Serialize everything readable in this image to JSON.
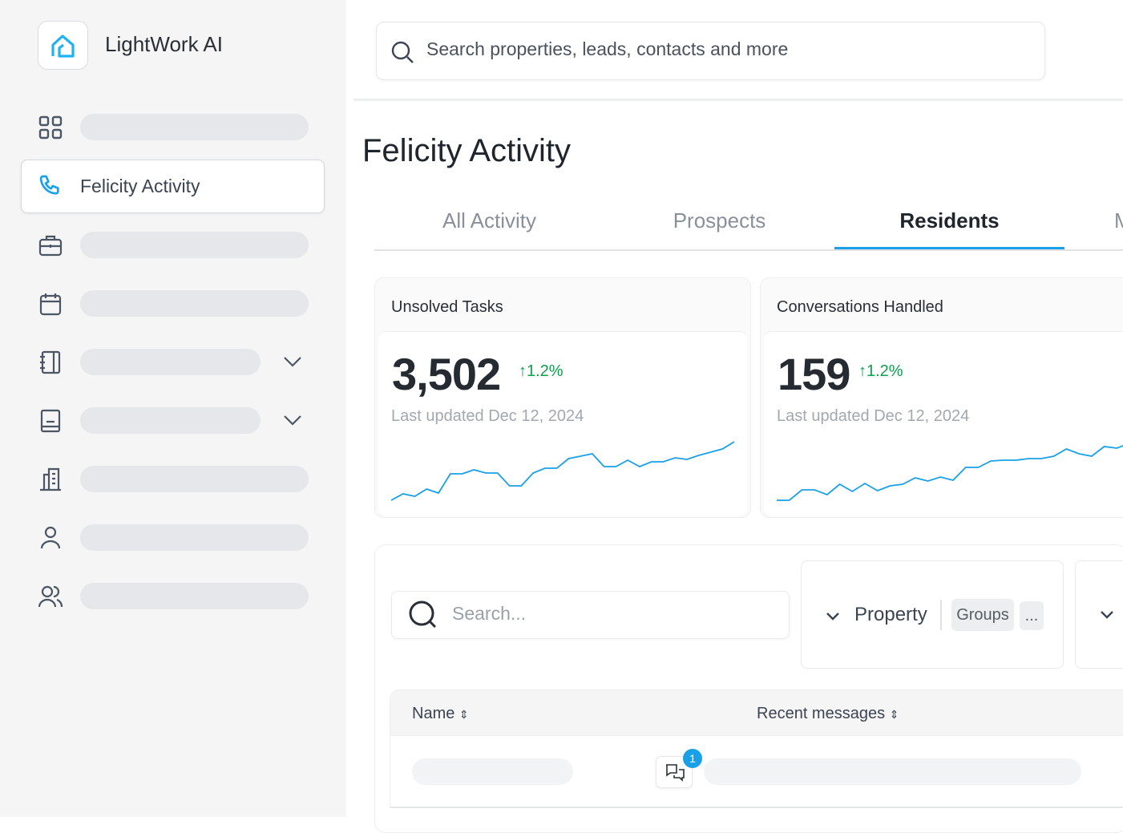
{
  "app": {
    "name": "LightWork AI",
    "accent": "#1aa0e8"
  },
  "sidebar": {
    "active_item": {
      "label": "Felicity Activity",
      "icon": "phone-icon"
    },
    "items": [
      {
        "icon": "grid-icon"
      },
      {
        "icon": "phone-icon",
        "label": "Felicity Activity"
      },
      {
        "icon": "briefcase-icon"
      },
      {
        "icon": "calendar-icon"
      },
      {
        "icon": "notebook-icon",
        "expandable": true
      },
      {
        "icon": "book-icon",
        "expandable": true
      },
      {
        "icon": "building-icon"
      },
      {
        "icon": "user-icon"
      },
      {
        "icon": "users-icon"
      }
    ]
  },
  "search": {
    "placeholder": "Search properties, leads, contacts and more"
  },
  "page": {
    "title": "Felicity Activity"
  },
  "tabs": [
    {
      "label": "All Activity"
    },
    {
      "label": "Prospects"
    },
    {
      "label": "Residents",
      "active": true
    },
    {
      "label": "M"
    }
  ],
  "cards": [
    {
      "title": "Unsolved Tasks",
      "value": "3,502",
      "delta": "1.2%",
      "updated": "Last updated Dec 12, 2024",
      "sparkline": [
        0,
        8,
        5,
        14,
        9,
        33,
        33,
        38,
        34,
        34,
        18,
        18,
        34,
        40,
        40,
        52,
        55,
        58,
        42,
        42,
        50,
        42,
        48,
        48,
        53,
        51,
        56,
        60,
        64,
        73
      ]
    },
    {
      "title": "Conversations Handled",
      "value": "159",
      "delta": "1.2%",
      "updated": "Last updated Dec 12, 2024",
      "sparkline": [
        0,
        0,
        13,
        13,
        7,
        20,
        11,
        21,
        12,
        18,
        20,
        28,
        24,
        29,
        25,
        41,
        41,
        49,
        50,
        50,
        52,
        52,
        55,
        64,
        58,
        55,
        67,
        65,
        71
      ]
    }
  ],
  "table": {
    "search_placeholder": "Search...",
    "filter": {
      "label": "Property",
      "chip": "Groups",
      "more": "..."
    },
    "columns": [
      {
        "label": "Name"
      },
      {
        "label": "Recent messages"
      }
    ],
    "rows": [
      {
        "unread_count": "1"
      }
    ]
  }
}
